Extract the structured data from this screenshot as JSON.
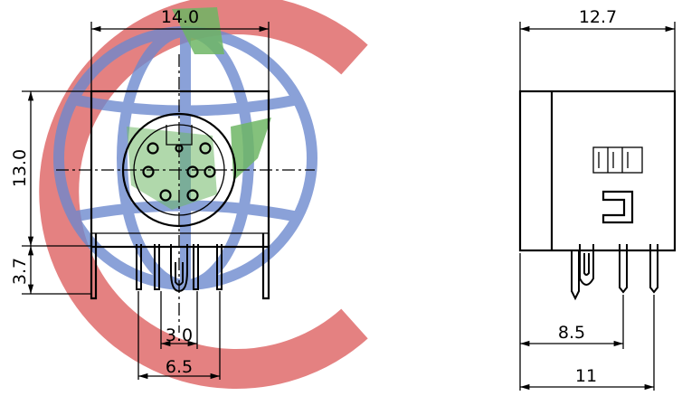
{
  "watermark": {
    "red": "#dc5a5a",
    "blue": "#5a7ac8",
    "green": "#5fae55"
  },
  "front_view": {
    "dim_width": "14.0",
    "dim_height": "13.0",
    "dim_pin_height": "3.7",
    "dim_pitch_inner": "3.0",
    "dim_pitch_outer": "6.5"
  },
  "side_view": {
    "dim_depth": "12.7",
    "dim_pin_offset": "8.5",
    "dim_overall": "11"
  }
}
